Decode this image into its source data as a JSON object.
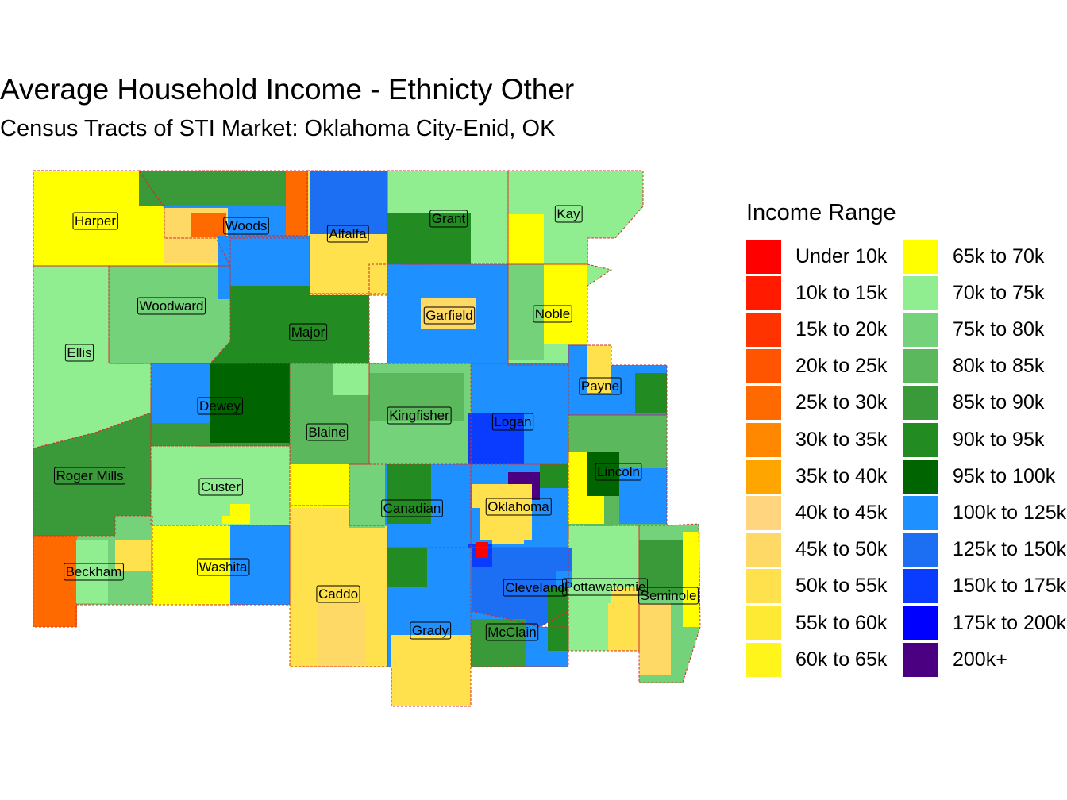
{
  "title": "Average Household Income - Ethnicty Other",
  "subtitle": "Census Tracts of STI Market: Oklahoma City-Enid, OK",
  "legend": {
    "title": "Income Range",
    "items": [
      {
        "label": "Under 10k",
        "color": "#FF0000"
      },
      {
        "label": "10k to 15k",
        "color": "#FF1A00"
      },
      {
        "label": "15k to 20k",
        "color": "#FF3300"
      },
      {
        "label": "20k to 25k",
        "color": "#FF5500"
      },
      {
        "label": "25k to 30k",
        "color": "#FF6A00"
      },
      {
        "label": "30k to 35k",
        "color": "#FF8800"
      },
      {
        "label": "35k to 40k",
        "color": "#FFA500"
      },
      {
        "label": "40k to 45k",
        "color": "#FFD580"
      },
      {
        "label": "45k to 50k",
        "color": "#FFD966"
      },
      {
        "label": "50k to 55k",
        "color": "#FFE14D"
      },
      {
        "label": "55k to 60k",
        "color": "#FFEA33"
      },
      {
        "label": "60k to 65k",
        "color": "#FFF51A"
      },
      {
        "label": "65k to 70k",
        "color": "#FFFF00"
      },
      {
        "label": "70k to 75k",
        "color": "#90EE90"
      },
      {
        "label": "75k to 80k",
        "color": "#74D37A"
      },
      {
        "label": "80k to 85k",
        "color": "#5CB85C"
      },
      {
        "label": "85k to 90k",
        "color": "#3A9A3A"
      },
      {
        "label": "90k to 95k",
        "color": "#228B22"
      },
      {
        "label": "95k to 100k",
        "color": "#006400"
      },
      {
        "label": "100k to 125k",
        "color": "#1E90FF"
      },
      {
        "label": "125k to 150k",
        "color": "#1C6EF2"
      },
      {
        "label": "150k to 175k",
        "color": "#0A3CFF"
      },
      {
        "label": "175k to 200k",
        "color": "#0000FF"
      },
      {
        "label": "200k+",
        "color": "#4B0082"
      }
    ]
  },
  "counties": [
    {
      "name": "Harper",
      "color": "#FFFF00"
    },
    {
      "name": "Woods",
      "color": "#1E90FF"
    },
    {
      "name": "Alfalfa",
      "color": "#FFE14D"
    },
    {
      "name": "Grant",
      "color": "#90EE90"
    },
    {
      "name": "Kay",
      "color": "#90EE90"
    },
    {
      "name": "Woodward",
      "color": "#74D37A"
    },
    {
      "name": "Ellis",
      "color": "#90EE90"
    },
    {
      "name": "Major",
      "color": "#228B22"
    },
    {
      "name": "Garfield",
      "color": "#1E90FF"
    },
    {
      "name": "Noble",
      "color": "#90EE90"
    },
    {
      "name": "Payne",
      "color": "#1E90FF"
    },
    {
      "name": "Dewey",
      "color": "#3A9A3A"
    },
    {
      "name": "Blaine",
      "color": "#5CB85C"
    },
    {
      "name": "Kingfisher",
      "color": "#74D37A"
    },
    {
      "name": "Logan",
      "color": "#1E90FF"
    },
    {
      "name": "Roger Mills",
      "color": "#3A9A3A"
    },
    {
      "name": "Custer",
      "color": "#90EE90"
    },
    {
      "name": "Canadian",
      "color": "#1E90FF"
    },
    {
      "name": "Oklahoma",
      "color": "#1E90FF"
    },
    {
      "name": "Lincoln",
      "color": "#5CB85C"
    },
    {
      "name": "Beckham",
      "color": "#74D37A"
    },
    {
      "name": "Washita",
      "color": "#FFFF00"
    },
    {
      "name": "Caddo",
      "color": "#FFE14D"
    },
    {
      "name": "Cleveland",
      "color": "#1C6EF2"
    },
    {
      "name": "Pottawatomie",
      "color": "#90EE90"
    },
    {
      "name": "Seminole",
      "color": "#74D37A"
    },
    {
      "name": "Grady",
      "color": "#1E90FF"
    },
    {
      "name": "McClain",
      "color": "#1E90FF"
    }
  ]
}
